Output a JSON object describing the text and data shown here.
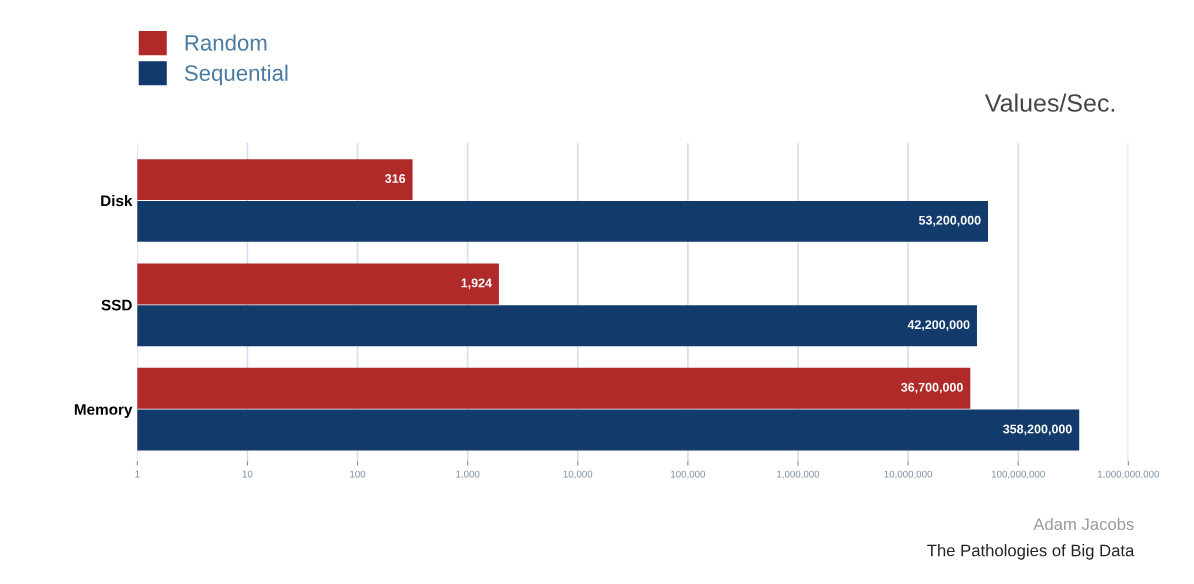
{
  "chart_data": {
    "type": "bar",
    "orientation": "horizontal",
    "title": "Values/Sec.",
    "categories": [
      "Disk",
      "SSD",
      "Memory"
    ],
    "series": [
      {
        "name": "Random",
        "color": "#b02a2a",
        "values": [
          316,
          1924,
          36700000
        ],
        "value_labels": [
          "316",
          "1,924",
          "36,700,000"
        ]
      },
      {
        "name": "Sequential",
        "color": "#123a6b",
        "values": [
          53200000,
          42200000,
          358200000
        ],
        "value_labels": [
          "53,200,000",
          "42,200,000",
          "358,200,000"
        ]
      }
    ],
    "log": "x",
    "xlim": [
      1,
      1000000000
    ],
    "xticks": [
      1,
      10,
      100,
      {
        "value": 1000,
        "label": "1,000"
      },
      {
        "value": 10000,
        "label": "10,000"
      },
      {
        "value": 100000,
        "label": "100,000"
      },
      {
        "value": 1000000,
        "label": "1,000,000"
      },
      {
        "value": 10000000,
        "label": "10,000,000"
      },
      {
        "value": 100000000,
        "label": "100,000,000"
      },
      {
        "value": 1000000000,
        "label": "1,000,000,000"
      }
    ],
    "grid": "x",
    "legend": "top left",
    "annotations": [
      "Adam Jacobs",
      "The Pathologies of Big Data"
    ]
  }
}
